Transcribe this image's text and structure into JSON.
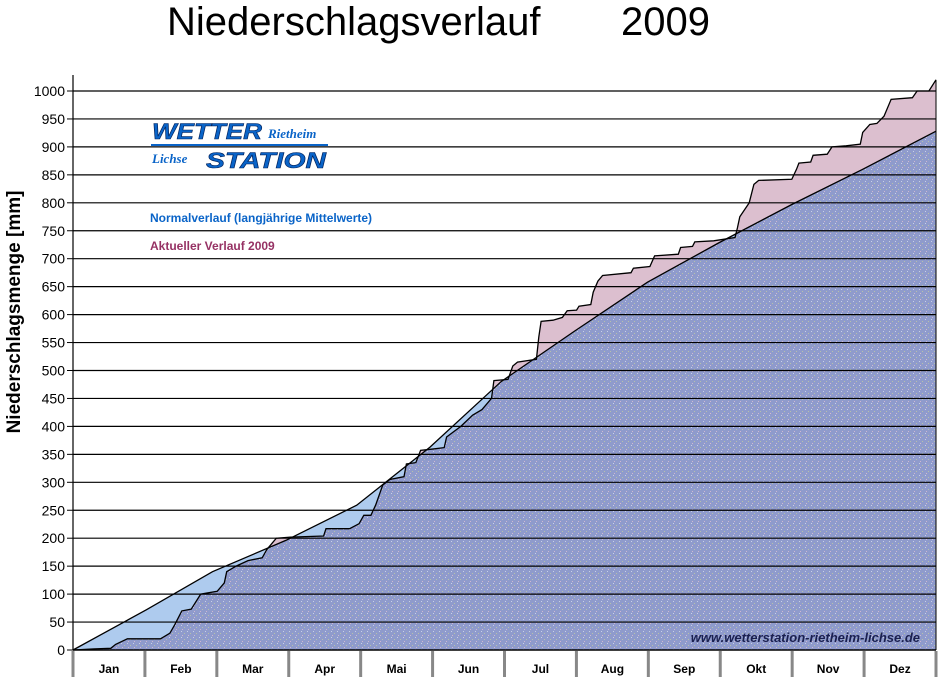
{
  "chart_data": {
    "type": "area",
    "title": "Niederschlagsverlauf",
    "year": "2009",
    "xlabel": "",
    "ylabel": "Niederschlagsmenge [mm]",
    "ylim": [
      0,
      1020
    ],
    "yticks": [
      0,
      50,
      100,
      150,
      200,
      250,
      300,
      350,
      400,
      450,
      500,
      550,
      600,
      650,
      700,
      750,
      800,
      850,
      900,
      950,
      1000
    ],
    "categories": [
      "Jan",
      "Feb",
      "Mar",
      "Apr",
      "Mai",
      "Jun",
      "Jul",
      "Aug",
      "Sep",
      "Okt",
      "Nov",
      "Dez"
    ],
    "x_unit": "day of year",
    "xlim": [
      0,
      365
    ],
    "grid": true,
    "legend_position": "top-left",
    "series": [
      {
        "name": "Normalverlauf (langjährige Mittelwerte)",
        "color": "#0a64c8",
        "fill": "#aecbee",
        "points": [
          [
            0,
            0
          ],
          [
            31,
            72
          ],
          [
            59,
            140
          ],
          [
            90,
            196
          ],
          [
            120,
            259
          ],
          [
            151,
            363
          ],
          [
            181,
            480
          ],
          [
            212,
            570
          ],
          [
            243,
            658
          ],
          [
            273,
            728
          ],
          [
            304,
            797
          ],
          [
            334,
            860
          ],
          [
            365,
            928
          ]
        ]
      },
      {
        "name": "Aktueller Verlauf 2009",
        "color": "#963264",
        "fill": "#dcbfcf",
        "points": [
          [
            0,
            0
          ],
          [
            9,
            2
          ],
          [
            16,
            3
          ],
          [
            18,
            10
          ],
          [
            23,
            20
          ],
          [
            37,
            20
          ],
          [
            41,
            30
          ],
          [
            43,
            45
          ],
          [
            46,
            70
          ],
          [
            50,
            73
          ],
          [
            54,
            100
          ],
          [
            61,
            105
          ],
          [
            64,
            120
          ],
          [
            65,
            140
          ],
          [
            69,
            150
          ],
          [
            74,
            160
          ],
          [
            80,
            165
          ],
          [
            82,
            180
          ],
          [
            86,
            200
          ],
          [
            92,
            202
          ],
          [
            106,
            204
          ],
          [
            107,
            217
          ],
          [
            117,
            217
          ],
          [
            121,
            226
          ],
          [
            123,
            241
          ],
          [
            126,
            241
          ],
          [
            128,
            259
          ],
          [
            131,
            295
          ],
          [
            134,
            305
          ],
          [
            140,
            310
          ],
          [
            141,
            333
          ],
          [
            145,
            335
          ],
          [
            147,
            357
          ],
          [
            153,
            360
          ],
          [
            157,
            362
          ],
          [
            158,
            381
          ],
          [
            164,
            400
          ],
          [
            169,
            420
          ],
          [
            173,
            430
          ],
          [
            177,
            450
          ],
          [
            178,
            482
          ],
          [
            184,
            484
          ],
          [
            186,
            508
          ],
          [
            188,
            515
          ],
          [
            196,
            520
          ],
          [
            197,
            560
          ],
          [
            198,
            588
          ],
          [
            203,
            590
          ],
          [
            207,
            595
          ],
          [
            209,
            607
          ],
          [
            213,
            608
          ],
          [
            214,
            615
          ],
          [
            219,
            618
          ],
          [
            220,
            640
          ],
          [
            222,
            660
          ],
          [
            224,
            670
          ],
          [
            236,
            675
          ],
          [
            237,
            683
          ],
          [
            244,
            686
          ],
          [
            246,
            705
          ],
          [
            256,
            708
          ],
          [
            257,
            720
          ],
          [
            262,
            722
          ],
          [
            263,
            730
          ],
          [
            271,
            732
          ],
          [
            280,
            738
          ],
          [
            281,
            755
          ],
          [
            282,
            775
          ],
          [
            286,
            800
          ],
          [
            288,
            833
          ],
          [
            290,
            840
          ],
          [
            304,
            842
          ],
          [
            306,
            860
          ],
          [
            307,
            871
          ],
          [
            312,
            873
          ],
          [
            313,
            885
          ],
          [
            319,
            887
          ],
          [
            321,
            900
          ],
          [
            327,
            902
          ],
          [
            333,
            905
          ],
          [
            334,
            926
          ],
          [
            337,
            940
          ],
          [
            340,
            942
          ],
          [
            343,
            955
          ],
          [
            346,
            985
          ],
          [
            355,
            988
          ],
          [
            357,
            1000
          ],
          [
            362,
            1000
          ],
          [
            365,
            1020
          ]
        ]
      }
    ],
    "overlap_fill": "#8f9bcc",
    "watermark": "www.wetterstation-rietheim-lichse.de"
  },
  "logo": {
    "line1": "WETTER",
    "line1_small": "Rietheim",
    "line2_small": "Lichse",
    "line2": "STATION",
    "color": "#0a64c8"
  }
}
